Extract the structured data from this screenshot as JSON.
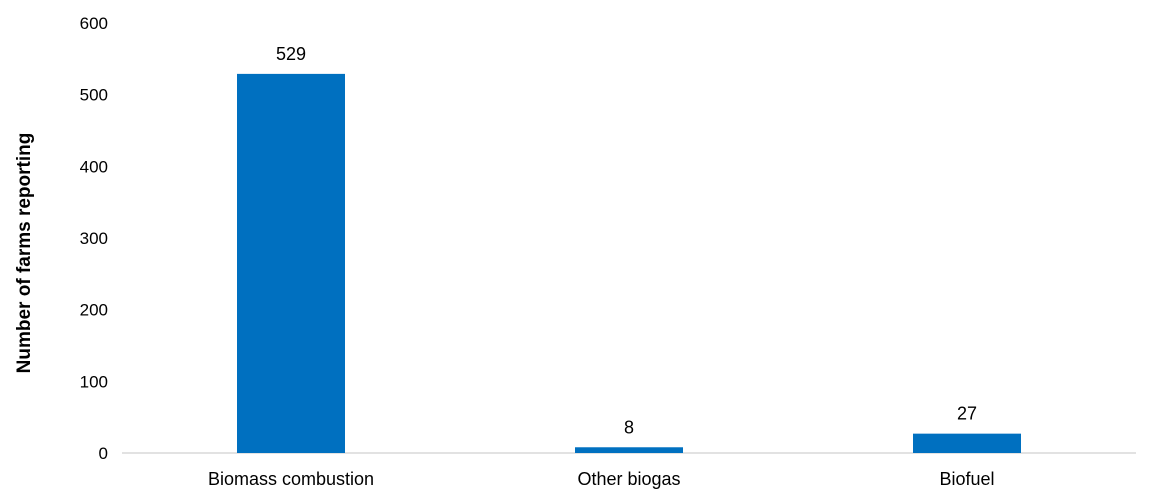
{
  "chart_data": {
    "type": "bar",
    "title": "",
    "xlabel": "",
    "ylabel": "Number of farms reporting",
    "categories": [
      "Biomass combustion",
      "Other biogas",
      "Biofuel"
    ],
    "values": [
      529,
      8,
      27
    ],
    "data_labels": [
      "529",
      "8",
      "27"
    ],
    "ylim": [
      0,
      600
    ],
    "yticks": [
      0,
      100,
      200,
      300,
      400,
      500,
      600
    ],
    "grid": false,
    "legend": "none",
    "bar_color": "#0070C0",
    "axis_color": "#D9D9D9"
  }
}
